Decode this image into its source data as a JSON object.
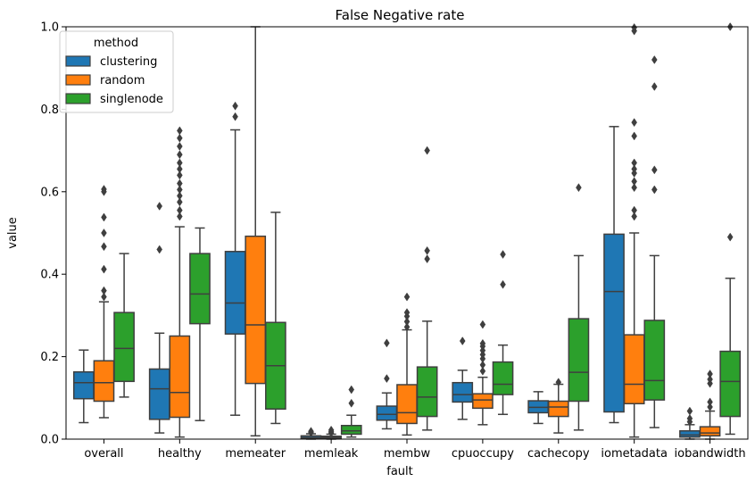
{
  "chart_data": {
    "type": "box",
    "title": "False Negative rate",
    "xlabel": "fault",
    "ylabel": "value",
    "ylim": [
      0,
      1
    ],
    "yticks": [
      "0.0",
      "0.2",
      "0.4",
      "0.6",
      "0.8",
      "1.0"
    ],
    "legend": {
      "title": "method",
      "position": "top-left"
    },
    "categories": [
      "overall",
      "healthy",
      "memeater",
      "memleak",
      "membw",
      "cpuoccupy",
      "cachecopy",
      "iometadata",
      "iobandwidth"
    ],
    "series": [
      {
        "name": "clustering",
        "color": "#1f77b4",
        "boxes": [
          {
            "wlo": 0.04,
            "q1": 0.098,
            "median": 0.137,
            "q3": 0.163,
            "whi": 0.216,
            "outliers": []
          },
          {
            "wlo": 0.015,
            "q1": 0.048,
            "median": 0.122,
            "q3": 0.17,
            "whi": 0.257,
            "outliers": [
              0.46,
              0.565
            ]
          },
          {
            "wlo": 0.058,
            "q1": 0.255,
            "median": 0.33,
            "q3": 0.455,
            "whi": 0.75,
            "outliers": [
              0.782,
              0.808
            ]
          },
          {
            "wlo": 0.0,
            "q1": 0.002,
            "median": 0.004,
            "q3": 0.008,
            "whi": 0.013,
            "outliers": [
              0.016,
              0.019
            ]
          },
          {
            "wlo": 0.025,
            "q1": 0.046,
            "median": 0.06,
            "q3": 0.08,
            "whi": 0.112,
            "outliers": [
              0.147,
              0.233
            ]
          },
          {
            "wlo": 0.048,
            "q1": 0.09,
            "median": 0.108,
            "q3": 0.137,
            "whi": 0.167,
            "outliers": [
              0.238
            ]
          },
          {
            "wlo": 0.038,
            "q1": 0.064,
            "median": 0.077,
            "q3": 0.093,
            "whi": 0.115,
            "outliers": []
          },
          {
            "wlo": 0.04,
            "q1": 0.066,
            "median": 0.358,
            "q3": 0.497,
            "whi": 0.758,
            "outliers": []
          },
          {
            "wlo": 0.0,
            "q1": 0.005,
            "median": 0.01,
            "q3": 0.02,
            "whi": 0.035,
            "outliers": [
              0.042,
              0.05,
              0.068
            ]
          }
        ]
      },
      {
        "name": "random",
        "color": "#ff7f0e",
        "boxes": [
          {
            "wlo": 0.052,
            "q1": 0.092,
            "median": 0.137,
            "q3": 0.19,
            "whi": 0.333,
            "outliers": [
              0.345,
              0.36,
              0.412,
              0.467,
              0.5,
              0.538,
              0.6,
              0.606
            ]
          },
          {
            "wlo": 0.005,
            "q1": 0.053,
            "median": 0.113,
            "q3": 0.25,
            "whi": 0.515,
            "outliers": [
              0.54,
              0.555,
              0.575,
              0.59,
              0.605,
              0.62,
              0.64,
              0.655,
              0.67,
              0.69,
              0.71,
              0.73,
              0.748
            ]
          },
          {
            "wlo": 0.008,
            "q1": 0.135,
            "median": 0.277,
            "q3": 0.492,
            "whi": 1.0,
            "outliers": []
          },
          {
            "wlo": 0.0,
            "q1": 0.002,
            "median": 0.004,
            "q3": 0.007,
            "whi": 0.012,
            "outliers": [
              0.015,
              0.018,
              0.022
            ]
          },
          {
            "wlo": 0.01,
            "q1": 0.038,
            "median": 0.064,
            "q3": 0.132,
            "whi": 0.265,
            "outliers": [
              0.272,
              0.285,
              0.298,
              0.307,
              0.345
            ]
          },
          {
            "wlo": 0.035,
            "q1": 0.075,
            "median": 0.095,
            "q3": 0.11,
            "whi": 0.15,
            "outliers": [
              0.165,
              0.18,
              0.195,
              0.205,
              0.215,
              0.225,
              0.232,
              0.278
            ]
          },
          {
            "wlo": 0.015,
            "q1": 0.055,
            "median": 0.078,
            "q3": 0.092,
            "whi": 0.133,
            "outliers": [
              0.138
            ]
          },
          {
            "wlo": 0.005,
            "q1": 0.086,
            "median": 0.133,
            "q3": 0.253,
            "whi": 0.5,
            "outliers": [
              0.54,
              0.555,
              0.61,
              0.625,
              0.645,
              0.655,
              0.67,
              0.735,
              0.768,
              0.99,
              0.998
            ]
          },
          {
            "wlo": 0.0,
            "q1": 0.008,
            "median": 0.015,
            "q3": 0.03,
            "whi": 0.068,
            "outliers": [
              0.078,
              0.09,
              0.135,
              0.145,
              0.158
            ]
          }
        ]
      },
      {
        "name": "singlenode",
        "color": "#2ca02c",
        "boxes": [
          {
            "wlo": 0.102,
            "q1": 0.14,
            "median": 0.22,
            "q3": 0.307,
            "whi": 0.45,
            "outliers": []
          },
          {
            "wlo": 0.045,
            "q1": 0.28,
            "median": 0.352,
            "q3": 0.45,
            "whi": 0.512,
            "outliers": []
          },
          {
            "wlo": 0.038,
            "q1": 0.073,
            "median": 0.178,
            "q3": 0.283,
            "whi": 0.55,
            "outliers": []
          },
          {
            "wlo": 0.005,
            "q1": 0.012,
            "median": 0.02,
            "q3": 0.033,
            "whi": 0.058,
            "outliers": [
              0.087,
              0.12
            ]
          },
          {
            "wlo": 0.022,
            "q1": 0.055,
            "median": 0.102,
            "q3": 0.175,
            "whi": 0.286,
            "outliers": [
              0.437,
              0.457,
              0.7
            ]
          },
          {
            "wlo": 0.06,
            "q1": 0.108,
            "median": 0.133,
            "q3": 0.187,
            "whi": 0.228,
            "outliers": [
              0.375,
              0.448
            ]
          },
          {
            "wlo": 0.022,
            "q1": 0.092,
            "median": 0.162,
            "q3": 0.292,
            "whi": 0.445,
            "outliers": [
              0.61
            ]
          },
          {
            "wlo": 0.028,
            "q1": 0.095,
            "median": 0.142,
            "q3": 0.288,
            "whi": 0.445,
            "outliers": [
              0.605,
              0.653,
              0.855,
              0.92
            ]
          },
          {
            "wlo": 0.012,
            "q1": 0.055,
            "median": 0.14,
            "q3": 0.213,
            "whi": 0.39,
            "outliers": [
              0.49,
              1.0
            ]
          }
        ]
      }
    ]
  }
}
